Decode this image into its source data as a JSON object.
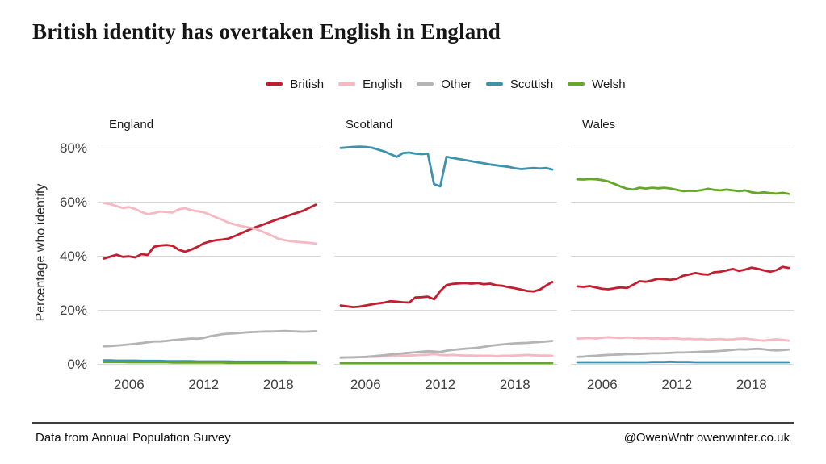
{
  "title": "British identity has overtaken English in England",
  "legend": {
    "items": [
      {
        "label": "British",
        "color": "#c11f30"
      },
      {
        "label": "English",
        "color": "#f7b8c2"
      },
      {
        "label": "Other",
        "color": "#b4b4b4"
      },
      {
        "label": "Scottish",
        "color": "#3d93ad"
      },
      {
        "label": "Welsh",
        "color": "#65a829"
      }
    ]
  },
  "y_axis": {
    "label": "Percentage who identify",
    "ticks": [
      {
        "value": 0,
        "label": "0%"
      },
      {
        "value": 20,
        "label": "20%"
      },
      {
        "value": 40,
        "label": "40%"
      },
      {
        "value": 60,
        "label": "60%"
      },
      {
        "value": 80,
        "label": "80%"
      }
    ]
  },
  "x_axis": {
    "ticks": [
      {
        "value": 2006,
        "label": "2006"
      },
      {
        "value": 2012,
        "label": "2012"
      },
      {
        "value": 2018,
        "label": "2018"
      }
    ]
  },
  "footer": {
    "source": "Data from Annual Population Survey",
    "credit": "@OwenWntr owenwinter.co.uk"
  },
  "chart_data": {
    "type": "line",
    "title": "British identity has overtaken English in England",
    "xlabel": "",
    "ylabel": "Percentage who identify",
    "ylim": [
      0,
      85
    ],
    "grid": true,
    "legend_position": "top",
    "x_ticks": [
      2006,
      2012,
      2018
    ],
    "y_ticks": [
      0,
      20,
      40,
      60,
      80
    ],
    "series_colors": {
      "British": "#c11f30",
      "English": "#f7b8c2",
      "Other": "#b4b4b4",
      "Scottish": "#3d93ad",
      "Welsh": "#65a829"
    },
    "x": [
      2004,
      2004.5,
      2005,
      2005.5,
      2006,
      2006.5,
      2007,
      2007.5,
      2008,
      2008.5,
      2009,
      2009.5,
      2010,
      2010.5,
      2011,
      2011.5,
      2012,
      2012.5,
      2013,
      2013.5,
      2014,
      2014.5,
      2015,
      2015.5,
      2016,
      2016.5,
      2017,
      2017.5,
      2018,
      2018.5,
      2019,
      2019.5,
      2020,
      2020.5,
      2021
    ],
    "facets": [
      {
        "name": "England",
        "series": [
          {
            "name": "British",
            "values": [
              39.0,
              39.7,
              40.4,
              39.6,
              39.8,
              39.4,
              40.6,
              40.3,
              43.3,
              43.8,
              44.0,
              43.7,
              42.2,
              41.5,
              42.3,
              43.3,
              44.6,
              45.3,
              45.8,
              46.0,
              46.4,
              47.3,
              48.3,
              49.3,
              50.3,
              51.1,
              51.9,
              52.8,
              53.6,
              54.3,
              55.2,
              55.9,
              56.7,
              57.8,
              58.9
            ]
          },
          {
            "name": "English",
            "values": [
              59.5,
              59.1,
              58.4,
              57.7,
              58.0,
              57.3,
              56.2,
              55.4,
              55.8,
              56.4,
              56.2,
              56.0,
              57.2,
              57.6,
              56.9,
              56.5,
              56.1,
              55.2,
              54.2,
              53.3,
              52.2,
              51.6,
              51.0,
              50.6,
              50.2,
              49.4,
              48.4,
              47.4,
              46.3,
              45.8,
              45.4,
              45.2,
              45.0,
              44.8,
              44.5
            ]
          },
          {
            "name": "Other",
            "values": [
              6.5,
              6.6,
              6.8,
              7.0,
              7.2,
              7.4,
              7.7,
              8.0,
              8.3,
              8.3,
              8.5,
              8.8,
              9.0,
              9.2,
              9.4,
              9.3,
              9.6,
              10.2,
              10.6,
              11.0,
              11.2,
              11.3,
              11.5,
              11.7,
              11.8,
              11.9,
              12.0,
              12.0,
              12.1,
              12.2,
              12.1,
              12.0,
              11.9,
              12.0,
              12.1
            ]
          },
          {
            "name": "Scottish",
            "values": [
              1.3,
              1.3,
              1.2,
              1.2,
              1.2,
              1.2,
              1.1,
              1.1,
              1.1,
              1.1,
              1.0,
              1.0,
              1.0,
              1.0,
              1.0,
              0.9,
              0.9,
              0.9,
              0.9,
              0.9,
              0.9,
              0.8,
              0.8,
              0.8,
              0.8,
              0.8,
              0.8,
              0.8,
              0.8,
              0.8,
              0.7,
              0.7,
              0.7,
              0.7,
              0.7
            ]
          },
          {
            "name": "Welsh",
            "values": [
              0.7,
              0.7,
              0.7,
              0.7,
              0.6,
              0.6,
              0.6,
              0.6,
              0.6,
              0.6,
              0.6,
              0.5,
              0.5,
              0.5,
              0.5,
              0.5,
              0.5,
              0.5,
              0.5,
              0.5,
              0.4,
              0.4,
              0.4,
              0.4,
              0.4,
              0.4,
              0.4,
              0.4,
              0.4,
              0.4,
              0.4,
              0.4,
              0.4,
              0.4,
              0.4
            ]
          }
        ]
      },
      {
        "name": "Scotland",
        "series": [
          {
            "name": "British",
            "values": [
              21.6,
              21.3,
              21.0,
              21.2,
              21.6,
              22.0,
              22.4,
              22.7,
              23.2,
              23.0,
              22.8,
              22.7,
              24.6,
              24.7,
              24.9,
              23.9,
              27.0,
              29.2,
              29.6,
              29.8,
              29.9,
              29.7,
              29.9,
              29.5,
              29.7,
              29.1,
              28.9,
              28.4,
              28.0,
              27.5,
              27.0,
              26.8,
              27.5,
              29.0,
              30.3
            ]
          },
          {
            "name": "English",
            "values": [
              2.4,
              2.4,
              2.5,
              2.5,
              2.6,
              2.6,
              2.7,
              2.8,
              2.9,
              3.0,
              3.1,
              3.1,
              3.2,
              3.3,
              3.4,
              3.6,
              3.3,
              3.2,
              3.3,
              3.2,
              3.1,
              3.1,
              3.0,
              3.0,
              3.0,
              2.9,
              3.0,
              3.0,
              3.1,
              3.2,
              3.3,
              3.2,
              3.1,
              3.1,
              3.0
            ]
          },
          {
            "name": "Other",
            "values": [
              2.3,
              2.4,
              2.4,
              2.5,
              2.6,
              2.8,
              3.0,
              3.2,
              3.5,
              3.7,
              3.9,
              4.1,
              4.3,
              4.5,
              4.7,
              4.6,
              4.4,
              4.9,
              5.2,
              5.4,
              5.6,
              5.8,
              6.0,
              6.3,
              6.7,
              7.0,
              7.2,
              7.4,
              7.6,
              7.7,
              7.8,
              8.0,
              8.1,
              8.3,
              8.5
            ]
          },
          {
            "name": "Scottish",
            "values": [
              79.9,
              80.1,
              80.3,
              80.4,
              80.3,
              80.0,
              79.3,
              78.6,
              77.6,
              76.6,
              78.0,
              78.2,
              77.8,
              77.6,
              77.8,
              66.5,
              65.7,
              76.6,
              76.2,
              75.8,
              75.4,
              75.0,
              74.6,
              74.2,
              73.8,
              73.5,
              73.2,
              72.9,
              72.4,
              72.1,
              72.3,
              72.5,
              72.3,
              72.5,
              71.9
            ]
          },
          {
            "name": "Welsh",
            "values": [
              0.3,
              0.3,
              0.3,
              0.3,
              0.3,
              0.3,
              0.3,
              0.3,
              0.3,
              0.3,
              0.3,
              0.3,
              0.3,
              0.3,
              0.3,
              0.3,
              0.3,
              0.3,
              0.3,
              0.3,
              0.3,
              0.3,
              0.3,
              0.3,
              0.3,
              0.3,
              0.3,
              0.3,
              0.3,
              0.3,
              0.3,
              0.3,
              0.3,
              0.3,
              0.3
            ]
          }
        ]
      },
      {
        "name": "Wales",
        "series": [
          {
            "name": "British",
            "values": [
              28.7,
              28.5,
              28.8,
              28.3,
              27.8,
              27.6,
              28.0,
              28.3,
              28.1,
              29.3,
              30.6,
              30.4,
              30.9,
              31.5,
              31.3,
              31.1,
              31.5,
              32.6,
              33.1,
              33.6,
              33.2,
              33.0,
              33.9,
              34.1,
              34.6,
              35.1,
              34.4,
              34.9,
              35.6,
              35.2,
              34.6,
              34.1,
              34.7,
              35.9,
              35.5
            ]
          },
          {
            "name": "English",
            "values": [
              9.4,
              9.5,
              9.6,
              9.4,
              9.7,
              9.9,
              9.7,
              9.6,
              9.8,
              9.7,
              9.5,
              9.6,
              9.4,
              9.5,
              9.3,
              9.5,
              9.4,
              9.2,
              9.3,
              9.1,
              9.2,
              9.0,
              9.1,
              9.2,
              9.0,
              9.1,
              9.3,
              9.4,
              9.1,
              8.8,
              8.6,
              8.9,
              9.1,
              8.9,
              8.6
            ]
          },
          {
            "name": "Other",
            "values": [
              2.6,
              2.7,
              2.9,
              3.0,
              3.2,
              3.3,
              3.4,
              3.5,
              3.6,
              3.6,
              3.7,
              3.8,
              3.9,
              3.9,
              4.0,
              4.1,
              4.2,
              4.2,
              4.3,
              4.4,
              4.5,
              4.6,
              4.7,
              4.8,
              5.0,
              5.2,
              5.4,
              5.3,
              5.5,
              5.6,
              5.4,
              5.1,
              5.0,
              5.1,
              5.3
            ]
          },
          {
            "name": "Scottish",
            "values": [
              0.6,
              0.6,
              0.6,
              0.6,
              0.6,
              0.6,
              0.6,
              0.6,
              0.6,
              0.6,
              0.6,
              0.6,
              0.7,
              0.7,
              0.7,
              0.8,
              0.7,
              0.7,
              0.7,
              0.6,
              0.6,
              0.6,
              0.6,
              0.6,
              0.6,
              0.6,
              0.6,
              0.6,
              0.6,
              0.6,
              0.6,
              0.6,
              0.6,
              0.6,
              0.6
            ]
          },
          {
            "name": "Welsh",
            "values": [
              68.3,
              68.2,
              68.4,
              68.3,
              68.0,
              67.5,
              66.6,
              65.6,
              64.8,
              64.5,
              65.2,
              64.9,
              65.2,
              65.0,
              65.2,
              64.9,
              64.4,
              63.9,
              64.1,
              64.0,
              64.3,
              64.8,
              64.4,
              64.2,
              64.5,
              64.2,
              63.9,
              64.2,
              63.5,
              63.2,
              63.5,
              63.2,
              63.0,
              63.3,
              62.9
            ]
          }
        ]
      }
    ]
  }
}
